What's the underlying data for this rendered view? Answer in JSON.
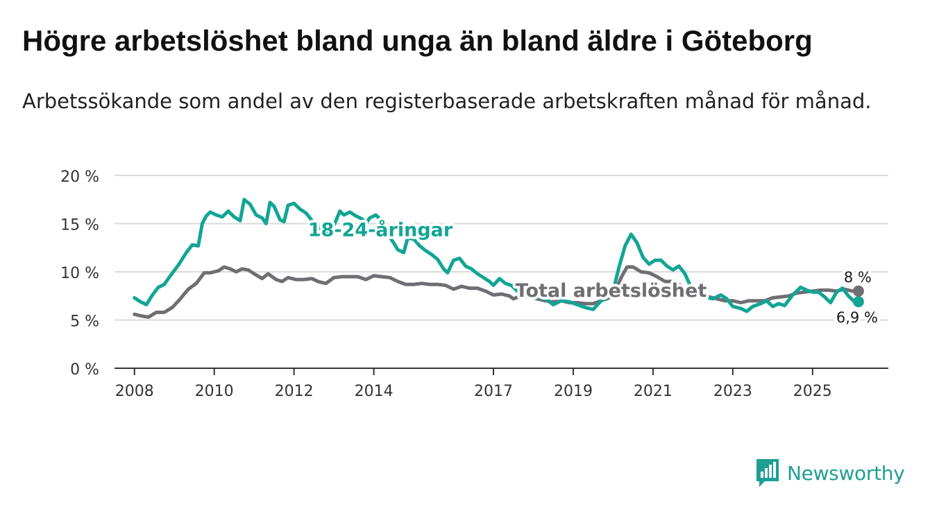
{
  "title": "Högre arbetslöshet bland unga än bland äldre i Göteborg",
  "subtitle": "Arbetssökande som andel av den registerbaserade arbetskraften månad för månad.",
  "colors": {
    "youth": "#12a595",
    "total": "#6e6e73",
    "grid": "#d9d9d9",
    "axis": "#333333",
    "brand": "#1f9e94"
  },
  "brand": {
    "name": "Newsworthy",
    "icon": "bar-chart-badge-icon"
  },
  "chart_data": {
    "type": "line",
    "xlabel": "",
    "ylabel": "",
    "xlim": [
      2007.5,
      2026.9
    ],
    "ylim": [
      0,
      20
    ],
    "y_ticks": [
      0,
      5,
      10,
      15,
      20
    ],
    "y_tick_labels": [
      "0 %",
      "5 %",
      "10 %",
      "15 %",
      "20 %"
    ],
    "x_ticks": [
      2008,
      2010,
      2012,
      2014,
      2017,
      2019,
      2021,
      2023,
      2025
    ],
    "x_tick_labels": [
      "2008",
      "2010",
      "2012",
      "2014",
      "2017",
      "2019",
      "2021",
      "2023",
      "2025"
    ],
    "grid": "horizontal",
    "series": [
      {
        "name": "Total arbetslöshet",
        "label": "Total arbetslöshet",
        "last_label": "8 %",
        "points": [
          [
            2008.0,
            5.6
          ],
          [
            2008.2,
            5.4
          ],
          [
            2008.35,
            5.3
          ],
          [
            2008.55,
            5.8
          ],
          [
            2008.75,
            5.8
          ],
          [
            2008.95,
            6.3
          ],
          [
            2009.15,
            7.2
          ],
          [
            2009.35,
            8.2
          ],
          [
            2009.55,
            8.8
          ],
          [
            2009.75,
            9.9
          ],
          [
            2009.9,
            9.9
          ],
          [
            2010.1,
            10.1
          ],
          [
            2010.25,
            10.5
          ],
          [
            2010.4,
            10.3
          ],
          [
            2010.55,
            10.0
          ],
          [
            2010.7,
            10.3
          ],
          [
            2010.85,
            10.2
          ],
          [
            2011.0,
            9.8
          ],
          [
            2011.2,
            9.3
          ],
          [
            2011.35,
            9.8
          ],
          [
            2011.55,
            9.2
          ],
          [
            2011.7,
            9.0
          ],
          [
            2011.85,
            9.4
          ],
          [
            2012.05,
            9.2
          ],
          [
            2012.25,
            9.2
          ],
          [
            2012.45,
            9.3
          ],
          [
            2012.6,
            9.0
          ],
          [
            2012.8,
            8.8
          ],
          [
            2013.0,
            9.4
          ],
          [
            2013.2,
            9.5
          ],
          [
            2013.4,
            9.5
          ],
          [
            2013.6,
            9.5
          ],
          [
            2013.8,
            9.2
          ],
          [
            2014.0,
            9.6
          ],
          [
            2014.2,
            9.5
          ],
          [
            2014.4,
            9.4
          ],
          [
            2014.6,
            9.0
          ],
          [
            2014.8,
            8.7
          ],
          [
            2015.0,
            8.7
          ],
          [
            2015.2,
            8.8
          ],
          [
            2015.4,
            8.7
          ],
          [
            2015.6,
            8.7
          ],
          [
            2015.8,
            8.6
          ],
          [
            2016.0,
            8.2
          ],
          [
            2016.2,
            8.5
          ],
          [
            2016.4,
            8.3
          ],
          [
            2016.6,
            8.3
          ],
          [
            2016.8,
            8.0
          ],
          [
            2017.0,
            7.6
          ],
          [
            2017.2,
            7.7
          ],
          [
            2017.4,
            7.5
          ],
          [
            2017.5,
            7.2
          ],
          [
            2017.7,
            7.5
          ],
          [
            2017.9,
            7.4
          ],
          [
            2018.1,
            7.2
          ],
          [
            2018.3,
            7.0
          ],
          [
            2018.5,
            6.9
          ],
          [
            2018.7,
            7.0
          ],
          [
            2018.9,
            6.8
          ],
          [
            2019.1,
            6.8
          ],
          [
            2019.3,
            6.7
          ],
          [
            2019.5,
            6.7
          ],
          [
            2019.7,
            7.0
          ],
          [
            2019.9,
            7.3
          ],
          [
            2020.05,
            7.9
          ],
          [
            2020.2,
            9.4
          ],
          [
            2020.35,
            10.5
          ],
          [
            2020.5,
            10.5
          ],
          [
            2020.7,
            10.0
          ],
          [
            2020.9,
            9.9
          ],
          [
            2021.1,
            9.5
          ],
          [
            2021.3,
            9.0
          ],
          [
            2021.5,
            9.0
          ],
          [
            2021.7,
            8.6
          ],
          [
            2021.85,
            7.9
          ],
          [
            2022.0,
            7.7
          ],
          [
            2022.2,
            7.6
          ],
          [
            2022.4,
            7.4
          ],
          [
            2022.6,
            7.2
          ],
          [
            2022.8,
            7.0
          ],
          [
            2023.0,
            7.0
          ],
          [
            2023.2,
            6.8
          ],
          [
            2023.4,
            7.0
          ],
          [
            2023.6,
            7.0
          ],
          [
            2023.8,
            7.0
          ],
          [
            2024.0,
            7.3
          ],
          [
            2024.2,
            7.4
          ],
          [
            2024.4,
            7.5
          ],
          [
            2024.6,
            7.8
          ],
          [
            2024.8,
            7.9
          ],
          [
            2025.0,
            8.0
          ],
          [
            2025.2,
            8.1
          ],
          [
            2025.4,
            8.1
          ],
          [
            2025.6,
            8.0
          ],
          [
            2025.8,
            8.2
          ],
          [
            2026.0,
            8.0
          ],
          [
            2026.15,
            8.0
          ]
        ]
      },
      {
        "name": "18-24-åringar",
        "label": "18-24-åringar",
        "last_label": "6,9 %",
        "points": [
          [
            2008.0,
            7.3
          ],
          [
            2008.15,
            6.9
          ],
          [
            2008.3,
            6.6
          ],
          [
            2008.45,
            7.6
          ],
          [
            2008.6,
            8.4
          ],
          [
            2008.75,
            8.7
          ],
          [
            2008.9,
            9.6
          ],
          [
            2009.1,
            10.7
          ],
          [
            2009.3,
            12.0
          ],
          [
            2009.45,
            12.8
          ],
          [
            2009.6,
            12.7
          ],
          [
            2009.7,
            15.0
          ],
          [
            2009.8,
            15.8
          ],
          [
            2009.9,
            16.2
          ],
          [
            2010.05,
            15.9
          ],
          [
            2010.2,
            15.7
          ],
          [
            2010.35,
            16.3
          ],
          [
            2010.5,
            15.7
          ],
          [
            2010.65,
            15.3
          ],
          [
            2010.75,
            17.5
          ],
          [
            2010.9,
            17.0
          ],
          [
            2011.05,
            15.9
          ],
          [
            2011.2,
            15.6
          ],
          [
            2011.3,
            15.0
          ],
          [
            2011.4,
            17.2
          ],
          [
            2011.5,
            16.8
          ],
          [
            2011.65,
            15.4
          ],
          [
            2011.75,
            15.2
          ],
          [
            2011.85,
            16.9
          ],
          [
            2012.0,
            17.1
          ],
          [
            2012.15,
            16.5
          ],
          [
            2012.3,
            16.1
          ],
          [
            2012.4,
            15.6
          ],
          [
            2012.5,
            15.0
          ],
          [
            2012.6,
            14.8
          ],
          [
            2012.75,
            13.8
          ],
          [
            2012.9,
            14.6
          ],
          [
            2013.0,
            14.8
          ],
          [
            2013.15,
            16.3
          ],
          [
            2013.25,
            15.9
          ],
          [
            2013.4,
            16.2
          ],
          [
            2013.55,
            15.8
          ],
          [
            2013.7,
            15.5
          ],
          [
            2013.8,
            15.0
          ],
          [
            2013.9,
            15.6
          ],
          [
            2014.05,
            15.9
          ],
          [
            2014.2,
            15.3
          ],
          [
            2014.35,
            13.9
          ],
          [
            2014.5,
            13.0
          ],
          [
            2014.6,
            12.3
          ],
          [
            2014.75,
            12.0
          ],
          [
            2014.85,
            13.5
          ],
          [
            2015.0,
            13.4
          ],
          [
            2015.15,
            12.7
          ],
          [
            2015.3,
            12.2
          ],
          [
            2015.45,
            11.8
          ],
          [
            2015.6,
            11.3
          ],
          [
            2015.75,
            10.3
          ],
          [
            2015.85,
            9.9
          ],
          [
            2016.0,
            11.2
          ],
          [
            2016.15,
            11.4
          ],
          [
            2016.3,
            10.6
          ],
          [
            2016.45,
            10.3
          ],
          [
            2016.6,
            9.8
          ],
          [
            2016.75,
            9.4
          ],
          [
            2016.9,
            9.0
          ],
          [
            2017.0,
            8.6
          ],
          [
            2017.15,
            9.3
          ],
          [
            2017.3,
            8.8
          ],
          [
            2017.45,
            8.6
          ],
          [
            2017.6,
            8.0
          ],
          [
            2017.75,
            7.8
          ],
          [
            2017.9,
            7.4
          ],
          [
            2018.1,
            7.4
          ],
          [
            2018.3,
            7.2
          ],
          [
            2018.5,
            6.6
          ],
          [
            2018.7,
            7.0
          ],
          [
            2018.9,
            6.9
          ],
          [
            2019.1,
            6.6
          ],
          [
            2019.3,
            6.3
          ],
          [
            2019.5,
            6.1
          ],
          [
            2019.7,
            7.0
          ],
          [
            2019.9,
            7.5
          ],
          [
            2020.0,
            8.0
          ],
          [
            2020.15,
            10.5
          ],
          [
            2020.3,
            12.7
          ],
          [
            2020.45,
            13.9
          ],
          [
            2020.6,
            13.0
          ],
          [
            2020.75,
            11.5
          ],
          [
            2020.9,
            10.8
          ],
          [
            2021.05,
            11.2
          ],
          [
            2021.2,
            11.2
          ],
          [
            2021.35,
            10.6
          ],
          [
            2021.5,
            10.2
          ],
          [
            2021.65,
            10.6
          ],
          [
            2021.8,
            9.8
          ],
          [
            2021.95,
            8.4
          ],
          [
            2022.1,
            7.8
          ],
          [
            2022.3,
            7.4
          ],
          [
            2022.5,
            7.2
          ],
          [
            2022.7,
            7.6
          ],
          [
            2022.85,
            7.2
          ],
          [
            2023.0,
            6.4
          ],
          [
            2023.2,
            6.2
          ],
          [
            2023.35,
            5.9
          ],
          [
            2023.5,
            6.4
          ],
          [
            2023.7,
            6.7
          ],
          [
            2023.85,
            7.0
          ],
          [
            2024.0,
            6.4
          ],
          [
            2024.15,
            6.7
          ],
          [
            2024.3,
            6.5
          ],
          [
            2024.5,
            7.6
          ],
          [
            2024.7,
            8.4
          ],
          [
            2024.85,
            8.1
          ],
          [
            2025.0,
            7.9
          ],
          [
            2025.15,
            7.9
          ],
          [
            2025.3,
            7.4
          ],
          [
            2025.45,
            6.8
          ],
          [
            2025.6,
            7.9
          ],
          [
            2025.75,
            8.3
          ],
          [
            2025.9,
            7.5
          ],
          [
            2026.05,
            6.9
          ],
          [
            2026.15,
            6.9
          ]
        ]
      }
    ]
  }
}
